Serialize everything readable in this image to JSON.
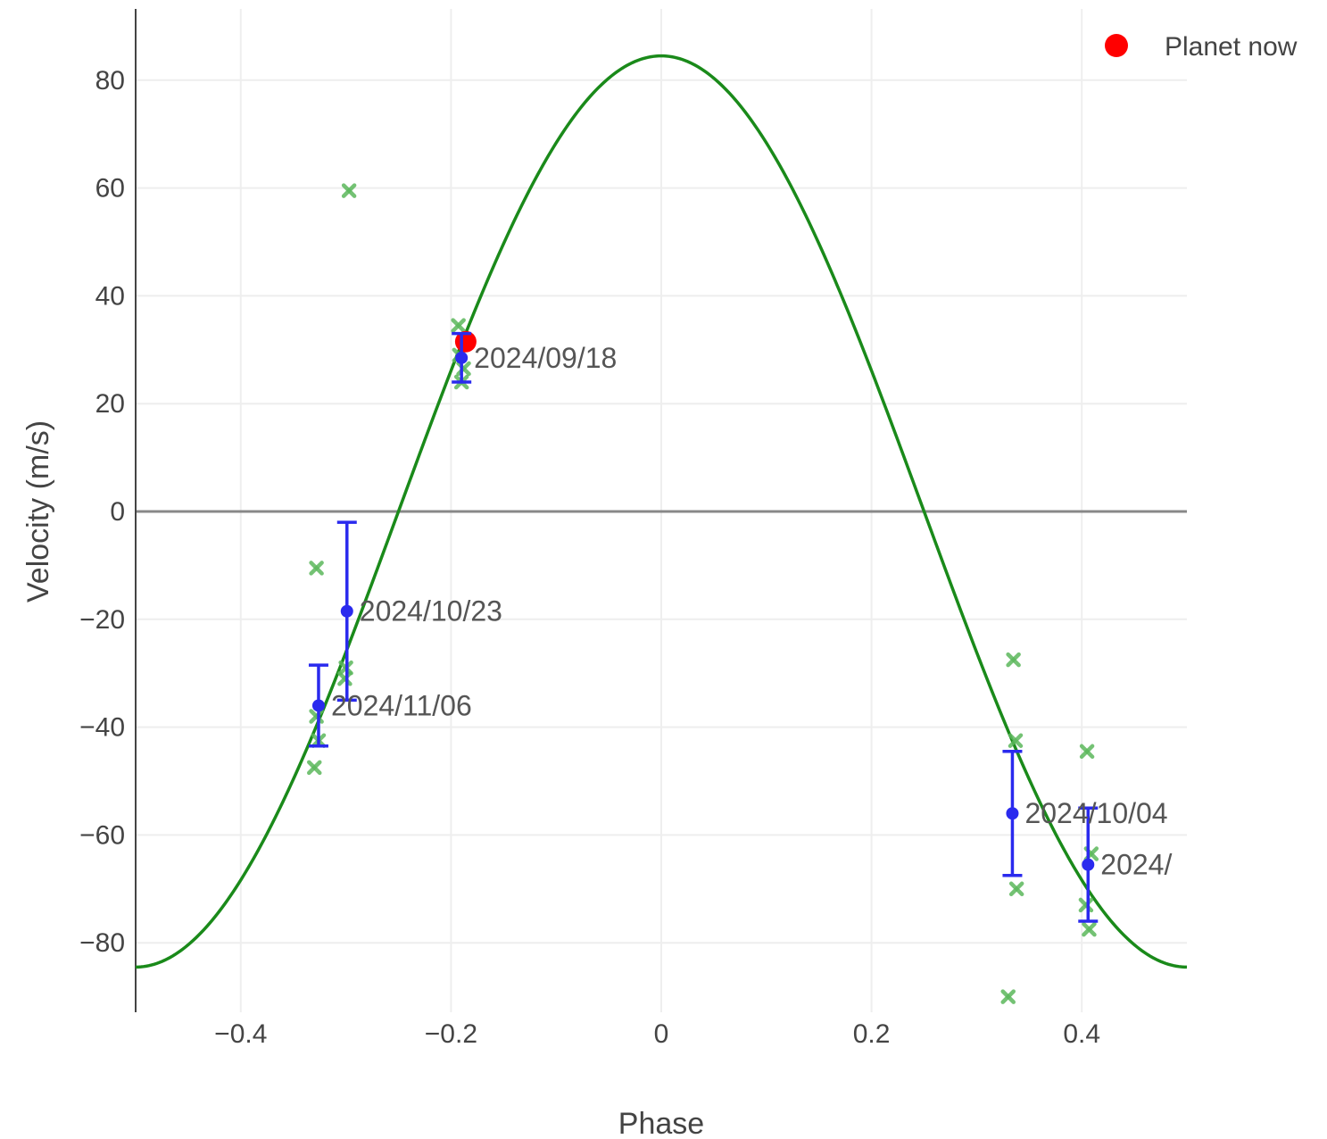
{
  "chart_data": {
    "type": "scatter",
    "xlabel": "Phase",
    "ylabel": "Velocity (m/s)",
    "xlim": [
      -0.5,
      0.5
    ],
    "ylim": [
      -92,
      92
    ],
    "x_ticks": [
      -0.4,
      -0.2,
      0,
      0.2,
      0.4
    ],
    "x_tick_labels": [
      "−0.4",
      "−0.2",
      "0",
      "0.2",
      "0.4"
    ],
    "y_ticks": [
      -80,
      -60,
      -40,
      -20,
      0,
      20,
      40,
      60,
      80
    ],
    "y_tick_labels": [
      "−80",
      "−60",
      "−40",
      "−20",
      "0",
      "20",
      "40",
      "60",
      "80"
    ],
    "grid": true,
    "legend_position": "top-right",
    "colors": {
      "model": "#1a8a1a",
      "raw": "#5cb85c",
      "binned": "#2a2aee",
      "planet_now": "#ff0000",
      "zero_line": "#888888",
      "grid": "#eeeeee",
      "axis": "#444444"
    },
    "series": [
      {
        "kind": "model-curve",
        "amplitude": 84.5,
        "phase_center": 0
      },
      {
        "kind": "raw-measurements",
        "points": [
          {
            "x": -0.297,
            "y": 59.5
          },
          {
            "x": -0.328,
            "y": -10.5
          },
          {
            "x": -0.33,
            "y": -47.5
          },
          {
            "x": -0.326,
            "y": -42.5
          },
          {
            "x": -0.328,
            "y": -38.0
          },
          {
            "x": -0.3,
            "y": -29.0
          },
          {
            "x": -0.301,
            "y": -31.0
          },
          {
            "x": -0.193,
            "y": 34.5
          },
          {
            "x": -0.192,
            "y": 29.0
          },
          {
            "x": -0.19,
            "y": 24.0
          },
          {
            "x": -0.188,
            "y": 26.5
          },
          {
            "x": 0.335,
            "y": -27.5
          },
          {
            "x": 0.337,
            "y": -42.5
          },
          {
            "x": 0.338,
            "y": -70.0
          },
          {
            "x": 0.33,
            "y": -90.0
          },
          {
            "x": 0.405,
            "y": -44.5
          },
          {
            "x": 0.404,
            "y": -73.0
          },
          {
            "x": 0.407,
            "y": -77.5
          },
          {
            "x": 0.409,
            "y": -63.5
          }
        ]
      },
      {
        "kind": "binned",
        "points": [
          {
            "x": -0.19,
            "y": 28.5,
            "err": 4.5,
            "label": "2024/09/18"
          },
          {
            "x": -0.299,
            "y": -18.5,
            "err": 16.5,
            "label": "2024/10/23"
          },
          {
            "x": -0.326,
            "y": -36.0,
            "err": 7.5,
            "label": "2024/11/06"
          },
          {
            "x": 0.334,
            "y": -56.0,
            "err": 11.5,
            "label": "2024/10/04"
          },
          {
            "x": 0.406,
            "y": -65.5,
            "err": 10.5,
            "label": "2024/"
          }
        ]
      },
      {
        "kind": "planet-now",
        "name": "Planet now",
        "points": [
          {
            "x": -0.186,
            "y": 31.5
          }
        ]
      }
    ]
  }
}
